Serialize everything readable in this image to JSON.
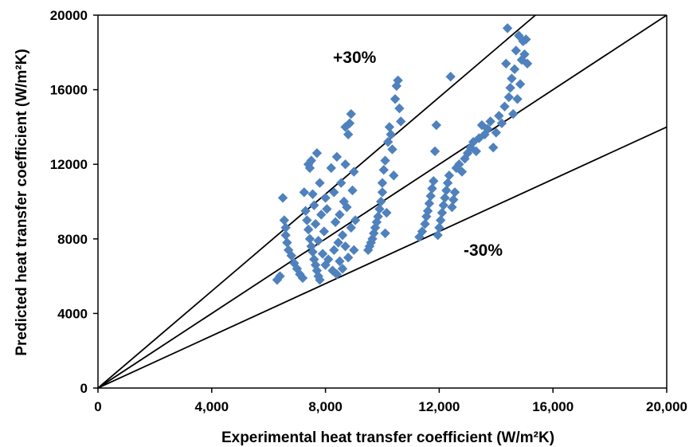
{
  "chart_data": {
    "type": "scatter",
    "xlabel": "Experimental heat transfer coefficient (W/m²K)",
    "ylabel": "Predicted heat transfer coefficient (W/m²K)",
    "xlim": [
      0,
      20000
    ],
    "ylim": [
      0,
      20000
    ],
    "x_ticks": [
      0,
      4000,
      8000,
      12000,
      16000,
      20000
    ],
    "x_tick_labels": [
      "0",
      "4,000",
      "8,000",
      "12,000",
      "16,000",
      "20,000"
    ],
    "y_ticks": [
      0,
      4000,
      8000,
      12000,
      16000,
      20000
    ],
    "y_tick_labels": [
      "0",
      "4000",
      "8000",
      "12000",
      "16000",
      "20000"
    ],
    "grid": false,
    "marker": "diamond",
    "marker_color": "#4F81BD",
    "line_color": "#000000",
    "reference_lines": [
      {
        "label": "",
        "slope": 1.0
      },
      {
        "label": "+30%",
        "slope": 1.3
      },
      {
        "label": "-30%",
        "slope": 0.7
      }
    ],
    "points": [
      [
        6300,
        5800
      ],
      [
        6400,
        6000
      ],
      [
        6500,
        10200
      ],
      [
        6550,
        9000
      ],
      [
        6600,
        8600
      ],
      [
        6600,
        8200
      ],
      [
        6650,
        7800
      ],
      [
        6700,
        7400
      ],
      [
        6800,
        7100
      ],
      [
        6900,
        6700
      ],
      [
        7000,
        6400
      ],
      [
        7100,
        6100
      ],
      [
        7200,
        5900
      ],
      [
        7250,
        10500
      ],
      [
        7300,
        9500
      ],
      [
        7350,
        9000
      ],
      [
        7400,
        8500
      ],
      [
        7400,
        12000
      ],
      [
        7450,
        11800
      ],
      [
        7450,
        8000
      ],
      [
        7500,
        12200
      ],
      [
        7500,
        7600
      ],
      [
        7550,
        7300
      ],
      [
        7550,
        10400
      ],
      [
        7600,
        9800
      ],
      [
        7600,
        6900
      ],
      [
        7650,
        6600
      ],
      [
        7650,
        8800
      ],
      [
        7700,
        6300
      ],
      [
        7700,
        12600
      ],
      [
        7750,
        6000
      ],
      [
        7750,
        7900
      ],
      [
        7800,
        5800
      ],
      [
        7800,
        11000
      ],
      [
        7850,
        9300
      ],
      [
        7900,
        7200
      ],
      [
        7950,
        8400
      ],
      [
        8000,
        10200
      ],
      [
        8000,
        6600
      ],
      [
        8050,
        9600
      ],
      [
        8100,
        6900
      ],
      [
        8200,
        11800
      ],
      [
        8250,
        6300
      ],
      [
        8300,
        7400
      ],
      [
        8300,
        10500
      ],
      [
        8350,
        8900
      ],
      [
        8400,
        12400
      ],
      [
        8400,
        6100
      ],
      [
        8450,
        7800
      ],
      [
        8500,
        9300
      ],
      [
        8500,
        6800
      ],
      [
        8550,
        11000
      ],
      [
        8600,
        8200
      ],
      [
        8600,
        6400
      ],
      [
        8650,
        10000
      ],
      [
        8700,
        12000
      ],
      [
        8700,
        7600
      ],
      [
        8750,
        9700
      ],
      [
        8800,
        13600
      ],
      [
        8800,
        7000
      ],
      [
        8850,
        14200
      ],
      [
        8900,
        8600
      ],
      [
        8900,
        14700
      ],
      [
        8950,
        10600
      ],
      [
        9000,
        7400
      ],
      [
        9000,
        11600
      ],
      [
        9050,
        9000
      ],
      [
        8700,
        14000
      ],
      [
        9500,
        7400
      ],
      [
        9550,
        7600
      ],
      [
        9600,
        7800
      ],
      [
        9650,
        8000
      ],
      [
        9700,
        8300
      ],
      [
        9750,
        8600
      ],
      [
        9800,
        8900
      ],
      [
        9850,
        9200
      ],
      [
        9900,
        9600
      ],
      [
        9950,
        10000
      ],
      [
        10000,
        10500
      ],
      [
        10000,
        11000
      ],
      [
        10050,
        11700
      ],
      [
        10100,
        12200
      ],
      [
        10100,
        8300
      ],
      [
        10150,
        9400
      ],
      [
        10200,
        13200
      ],
      [
        10250,
        14000
      ],
      [
        10300,
        13600
      ],
      [
        10350,
        12800
      ],
      [
        10400,
        11400
      ],
      [
        10450,
        15500
      ],
      [
        10500,
        16200
      ],
      [
        10550,
        16500
      ],
      [
        10600,
        15000
      ],
      [
        10650,
        14300
      ],
      [
        11300,
        8100
      ],
      [
        11400,
        8400
      ],
      [
        11500,
        8800
      ],
      [
        11550,
        9200
      ],
      [
        11600,
        9500
      ],
      [
        11650,
        9900
      ],
      [
        11700,
        10300
      ],
      [
        11750,
        10700
      ],
      [
        11800,
        11100
      ],
      [
        11850,
        12700
      ],
      [
        11900,
        14100
      ],
      [
        11950,
        8200
      ],
      [
        12000,
        8600
      ],
      [
        12050,
        9000
      ],
      [
        12100,
        9400
      ],
      [
        12150,
        9800
      ],
      [
        12200,
        10200
      ],
      [
        12250,
        10600
      ],
      [
        12300,
        11000
      ],
      [
        12350,
        11400
      ],
      [
        12400,
        16700
      ],
      [
        12450,
        9700
      ],
      [
        12500,
        10100
      ],
      [
        12550,
        10500
      ],
      [
        12600,
        11800
      ],
      [
        12700,
        12000
      ],
      [
        12800,
        11600
      ],
      [
        12900,
        12300
      ],
      [
        13000,
        12600
      ],
      [
        13100,
        12900
      ],
      [
        13200,
        13200
      ],
      [
        13300,
        12700
      ],
      [
        13400,
        13400
      ],
      [
        13500,
        14100
      ],
      [
        13600,
        13600
      ],
      [
        13700,
        13900
      ],
      [
        13800,
        14300
      ],
      [
        13900,
        12900
      ],
      [
        14000,
        13700
      ],
      [
        14100,
        14600
      ],
      [
        14200,
        14200
      ],
      [
        14300,
        15100
      ],
      [
        14350,
        17400
      ],
      [
        14400,
        19300
      ],
      [
        14450,
        15600
      ],
      [
        14500,
        16100
      ],
      [
        14550,
        16600
      ],
      [
        14600,
        14700
      ],
      [
        14650,
        17100
      ],
      [
        14700,
        18100
      ],
      [
        14750,
        15500
      ],
      [
        14800,
        18900
      ],
      [
        14850,
        16300
      ],
      [
        14900,
        17600
      ],
      [
        14950,
        18600
      ],
      [
        15000,
        17900
      ],
      [
        15050,
        18700
      ],
      [
        15100,
        17400
      ]
    ]
  }
}
